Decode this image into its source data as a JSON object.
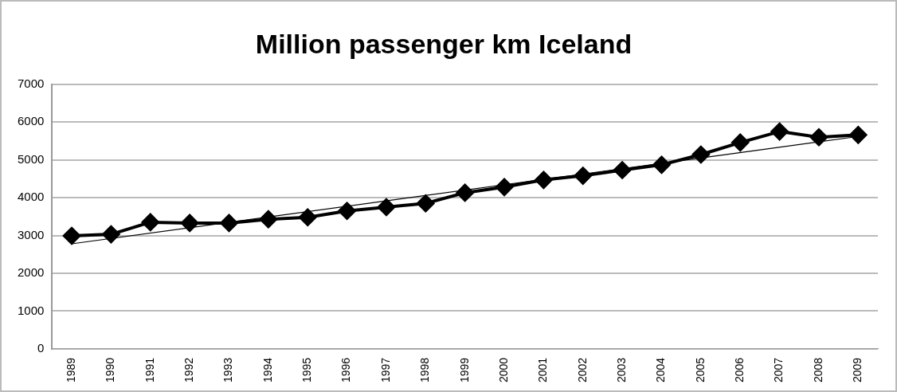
{
  "chart_data": {
    "type": "line",
    "title": "Million passenger km Iceland",
    "categories": [
      "1989",
      "1990",
      "1991",
      "1992",
      "1993",
      "1994",
      "1995",
      "1996",
      "1997",
      "1998",
      "1999",
      "2000",
      "2001",
      "2002",
      "2003",
      "2004",
      "2005",
      "2006",
      "2007",
      "2008",
      "2009"
    ],
    "series": [
      {
        "color": "#000000",
        "marker": "diamond",
        "values": [
          2990,
          3030,
          3350,
          3330,
          3330,
          3430,
          3480,
          3650,
          3750,
          3850,
          4130,
          4280,
          4470,
          4580,
          4730,
          4870,
          5140,
          5460,
          5750,
          5600,
          5660
        ]
      },
      {
        "type": "line",
        "color": "#000000",
        "marker": "none",
        "values": [
          2780,
          null,
          null,
          null,
          null,
          null,
          null,
          null,
          null,
          null,
          null,
          null,
          null,
          null,
          null,
          null,
          null,
          null,
          null,
          null,
          5620
        ]
      }
    ],
    "ylim": [
      0,
      7000
    ],
    "yticks": [
      0,
      1000,
      2000,
      3000,
      4000,
      5000,
      6000,
      7000
    ],
    "grid": "y",
    "legend": false
  }
}
